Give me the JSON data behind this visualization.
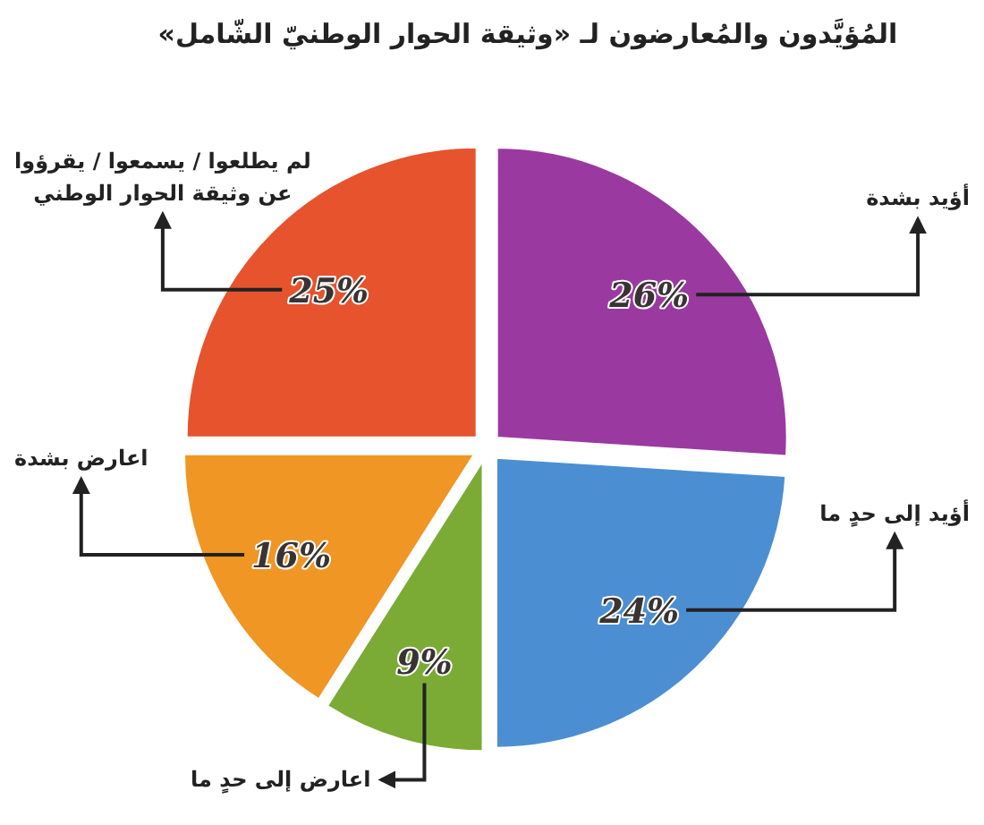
{
  "chart_data": {
    "type": "pie",
    "title": "المُؤيَّدون والمُعارضون لـ «وثيقة الحوار الوطنيّ الشّامل»",
    "categories": [
      "أؤيد بشدة",
      "أؤيد إلى حدٍ ما",
      "اعارض إلى حدٍ ما",
      "اعارض بشدة",
      "لم يطلعوا / يسمعوا / يقرؤوا عن وثيقة الحوار الوطني"
    ],
    "values": [
      26,
      24,
      9,
      16,
      25
    ],
    "value_labels": [
      "26%",
      "24%",
      "9%",
      "16%",
      "25%"
    ],
    "colors": [
      "#9a3aa0",
      "#4b8fd2",
      "#7bab35",
      "#f09624",
      "#e6532d"
    ]
  }
}
